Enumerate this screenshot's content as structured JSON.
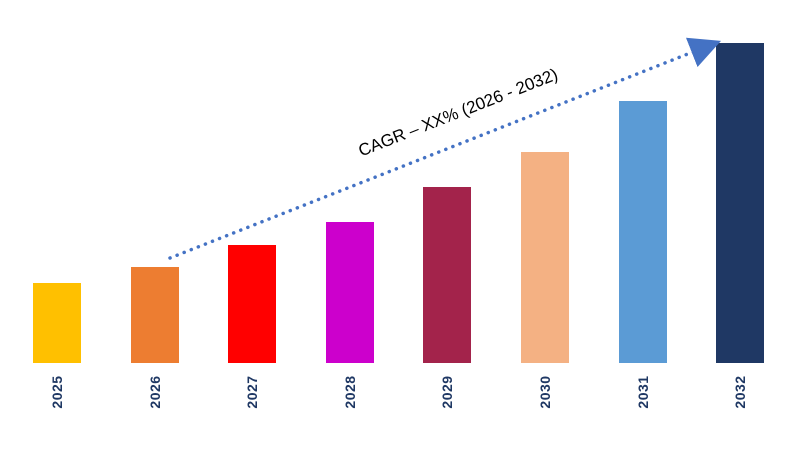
{
  "chart_data": {
    "type": "bar",
    "title": "",
    "xlabel": "",
    "ylabel": "",
    "categories": [
      "2025",
      "2026",
      "2027",
      "2028",
      "2029",
      "2030",
      "2031",
      "2032"
    ],
    "values": [
      25,
      30,
      37,
      44,
      55,
      66,
      82,
      100
    ],
    "ylim": [
      0,
      100
    ],
    "grid": false,
    "legend": false,
    "background_color": "#FFFFFF",
    "bar_colors": [
      "#FFC000",
      "#ED7D31",
      "#FF0000",
      "#CC00CC",
      "#A3234B",
      "#F4B183",
      "#5B9BD5",
      "#1F3864"
    ],
    "category_label_color": "#1F3864",
    "annotation": "CAGR – XX% (2026 - 2032)",
    "annotation_arrow": {
      "from_category": "2026",
      "to_category": "2032",
      "style": "dotted",
      "color": "#4472C4"
    }
  }
}
